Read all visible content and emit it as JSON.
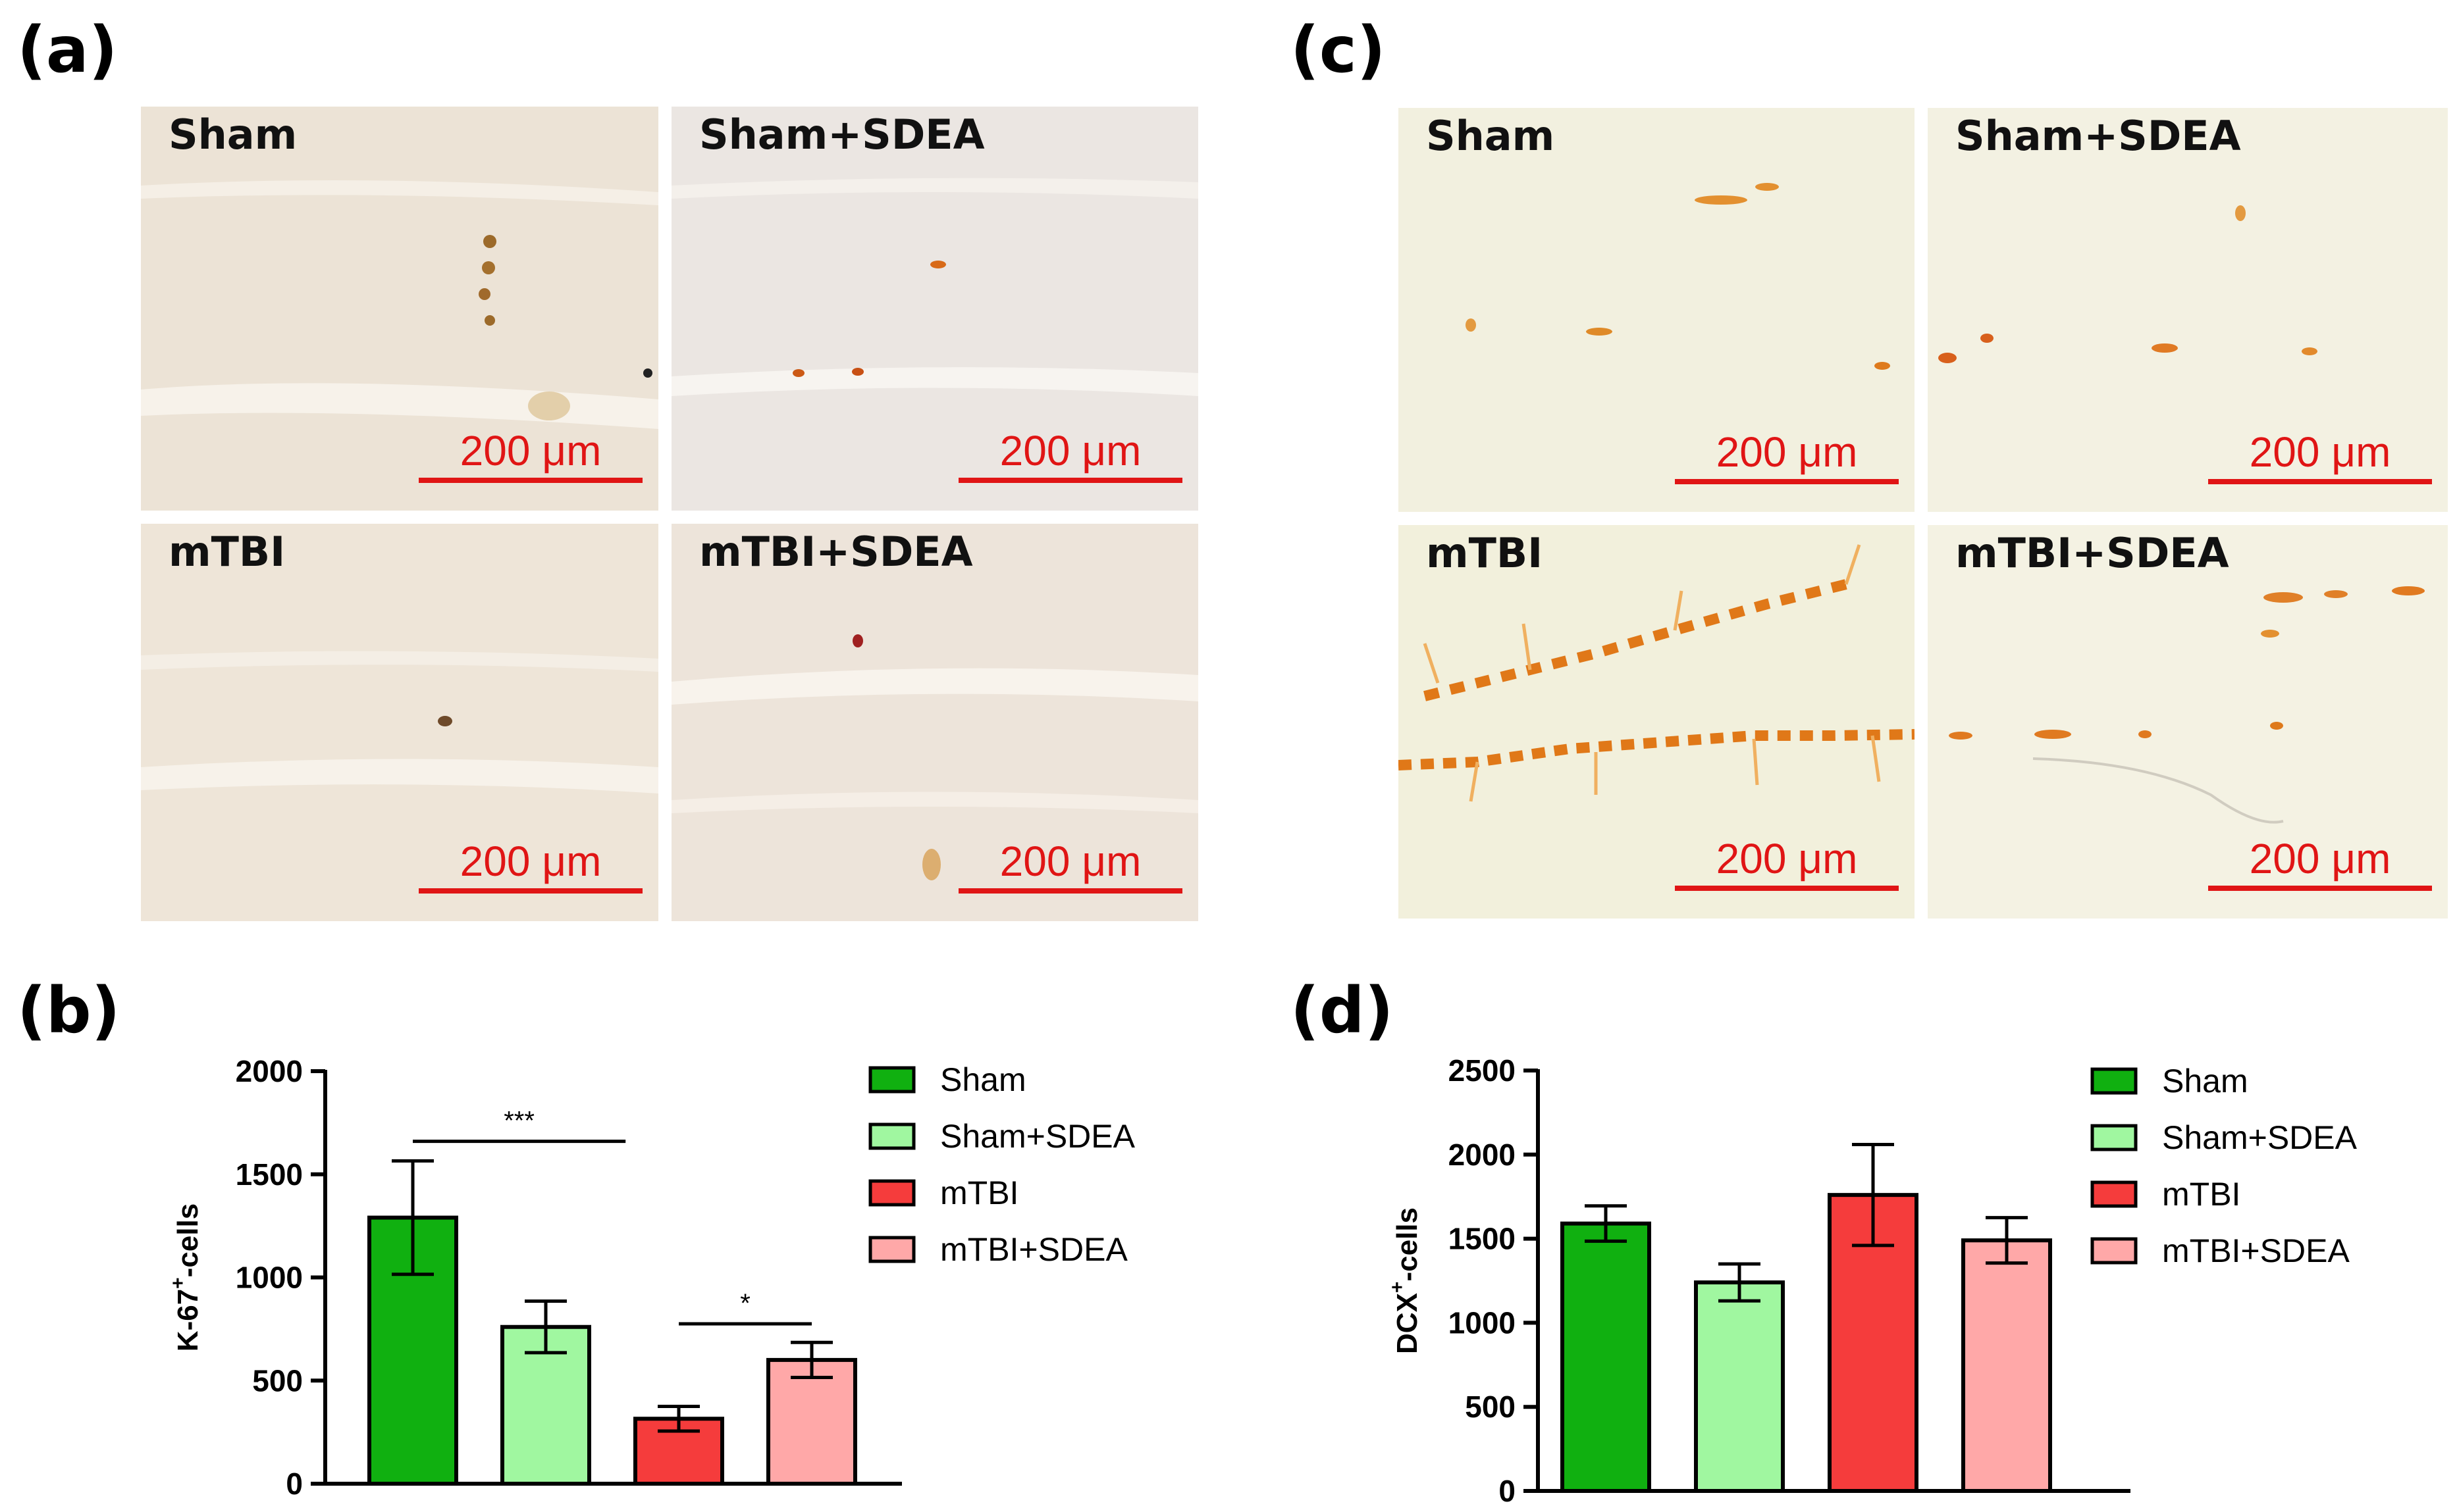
{
  "panels": {
    "a": "(a)",
    "b": "(b)",
    "c": "(c)",
    "d": "(d)"
  },
  "micrographs": {
    "a": [
      {
        "label": "Sham",
        "scale": "200 μm"
      },
      {
        "label": "Sham+SDEA",
        "scale": "200 μm"
      },
      {
        "label": "mTBI",
        "scale": "200 μm"
      },
      {
        "label": "mTBI+SDEA",
        "scale": "200 μm"
      }
    ],
    "c": [
      {
        "label": "Sham",
        "scale": "200 μm"
      },
      {
        "label": "Sham+SDEA",
        "scale": "200 μm"
      },
      {
        "label": "mTBI",
        "scale": "200 μm"
      },
      {
        "label": "mTBI+SDEA",
        "scale": "200 μm"
      }
    ]
  },
  "colors": {
    "sham": "#10b010",
    "sham_sdea": "#a0f7a0",
    "mtbi": "#f53c3c",
    "mtbi_sdea": "#ffa8a8",
    "scale_bar": "#e01515",
    "tissue_a": "#efe6d8",
    "tissue_c": "#f4f1e0"
  },
  "chart_data": [
    {
      "panel": "b",
      "type": "bar",
      "categories": [
        "Sham",
        "Sham+SDEA",
        "mTBI",
        "mTBI+SDEA"
      ],
      "values": [
        1290,
        760,
        315,
        600
      ],
      "errors": [
        275,
        125,
        60,
        85
      ],
      "ylabel_main": "K-67",
      "ylabel_sup": "+",
      "ylabel_tail": "-cells",
      "ylim": [
        0,
        2000
      ],
      "yticks": [
        "0",
        "500",
        "1000",
        "1500",
        "2000"
      ],
      "legend": [
        "Sham",
        "Sham+SDEA",
        "mTBI",
        "mTBI+SDEA"
      ],
      "legend_position": "right",
      "significance": [
        {
          "from": 0,
          "to": 1.6,
          "level": 1660,
          "label": "***"
        },
        {
          "from": 2,
          "to": 3,
          "level": 775,
          "label": "*"
        }
      ]
    },
    {
      "panel": "d",
      "type": "bar",
      "categories": [
        "Sham",
        "Sham+SDEA",
        "mTBI",
        "mTBI+SDEA"
      ],
      "values": [
        1590,
        1240,
        1760,
        1490
      ],
      "errors": [
        105,
        110,
        300,
        135
      ],
      "ylabel_main": "DCX",
      "ylabel_sup": "+",
      "ylabel_tail": "-cells",
      "ylim": [
        0,
        2500
      ],
      "yticks": [
        "0",
        "500",
        "1000",
        "1500",
        "2000",
        "2500"
      ],
      "legend": [
        "Sham",
        "Sham+SDEA",
        "mTBI",
        "mTBI+SDEA"
      ],
      "legend_position": "right",
      "significance": []
    }
  ]
}
